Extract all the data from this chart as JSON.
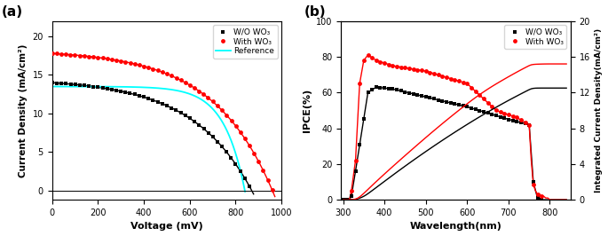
{
  "panel_a": {
    "xlabel": "Voltage (mV)",
    "ylabel": "Current Density (mA/cm²)",
    "xlim": [
      0,
      1000
    ],
    "ylim": [
      -1.2,
      22
    ],
    "yticks": [
      0,
      5,
      10,
      15,
      20
    ],
    "xticks": [
      0,
      200,
      400,
      600,
      800,
      1000
    ],
    "legend": [
      "W/O WO₃",
      "With WO₃",
      "Reference"
    ],
    "wo_wo3": {
      "color": "black",
      "Jsc": 14.0,
      "Voc": 870,
      "n": 10.0
    },
    "with_wo3": {
      "color": "red",
      "Jsc": 17.8,
      "Voc": 960,
      "n": 10.0
    },
    "reference": {
      "color": "cyan",
      "Jsc": 13.5,
      "Voc": 840,
      "n": 3.5
    }
  },
  "panel_b": {
    "xlabel": "Wavelength(nm)",
    "ylabel_left": "IPCE(%)",
    "ylabel_right": "Integrated Current Density(mA/cm²)",
    "xlim": [
      295,
      850
    ],
    "ylim_left": [
      0,
      100
    ],
    "ylim_right": [
      0,
      20
    ],
    "yticks_left": [
      0,
      20,
      40,
      60,
      80,
      100
    ],
    "yticks_right": [
      0,
      4,
      8,
      12,
      16,
      20
    ],
    "xticks": [
      300,
      400,
      500,
      600,
      700,
      800
    ],
    "legend": [
      "W/O WO₃",
      "With WO₃"
    ],
    "int_black_max": 12.5,
    "int_red_max": 15.2
  }
}
